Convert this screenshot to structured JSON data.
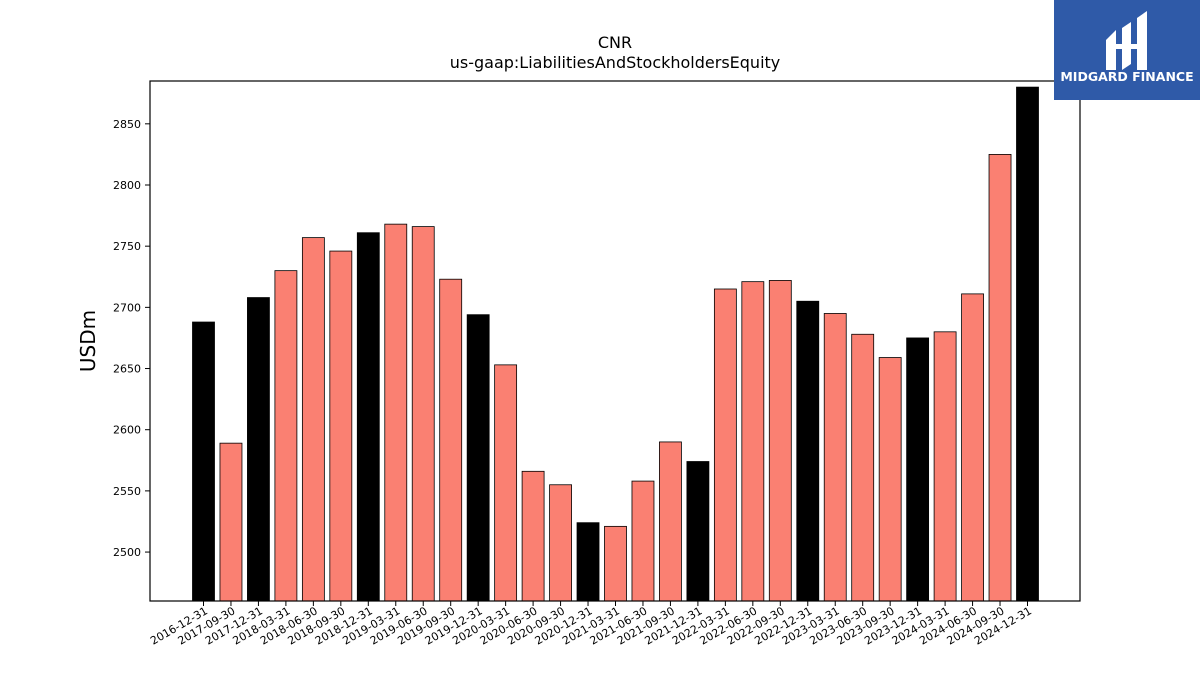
{
  "chart_data": {
    "type": "bar",
    "title": "CNR",
    "subtitle": "us-gaap:LiabilitiesAndStockholdersEquity",
    "xlabel": "",
    "ylabel": "USDm",
    "ylim": [
      2460,
      2885
    ],
    "yticks": [
      2500,
      2550,
      2600,
      2650,
      2700,
      2750,
      2800,
      2850
    ],
    "grid": false,
    "categories": [
      "2016-12-31",
      "2017-09-30",
      "2017-12-31",
      "2018-03-31",
      "2018-06-30",
      "2018-09-30",
      "2018-12-31",
      "2019-03-31",
      "2019-06-30",
      "2019-09-30",
      "2019-12-31",
      "2020-03-31",
      "2020-06-30",
      "2020-09-30",
      "2020-12-31",
      "2021-03-31",
      "2021-06-30",
      "2021-09-30",
      "2021-12-31",
      "2022-03-31",
      "2022-06-30",
      "2022-09-30",
      "2022-12-31",
      "2023-03-31",
      "2023-06-30",
      "2023-09-30",
      "2023-12-31",
      "2024-03-31",
      "2024-06-30",
      "2024-09-30",
      "2024-12-31"
    ],
    "values": [
      2688,
      2589,
      2708,
      2730,
      2757,
      2746,
      2761,
      2768,
      2766,
      2723,
      2694,
      2653,
      2566,
      2555,
      2524,
      2521,
      2558,
      2590,
      2574,
      2715,
      2721,
      2722,
      2705,
      2695,
      2678,
      2659,
      2675,
      2680,
      2711,
      2825,
      2880
    ],
    "fiscal_year_end": [
      true,
      false,
      true,
      false,
      false,
      false,
      true,
      false,
      false,
      false,
      true,
      false,
      false,
      false,
      true,
      false,
      false,
      false,
      true,
      false,
      false,
      false,
      true,
      false,
      false,
      false,
      true,
      false,
      false,
      false,
      true
    ],
    "colors": {
      "annual": "#000000",
      "quarterly": "#fa8072",
      "edge": "#000000"
    }
  },
  "logo": {
    "text": "MIDGARD FINANCE",
    "background": "#2f5aa8"
  }
}
